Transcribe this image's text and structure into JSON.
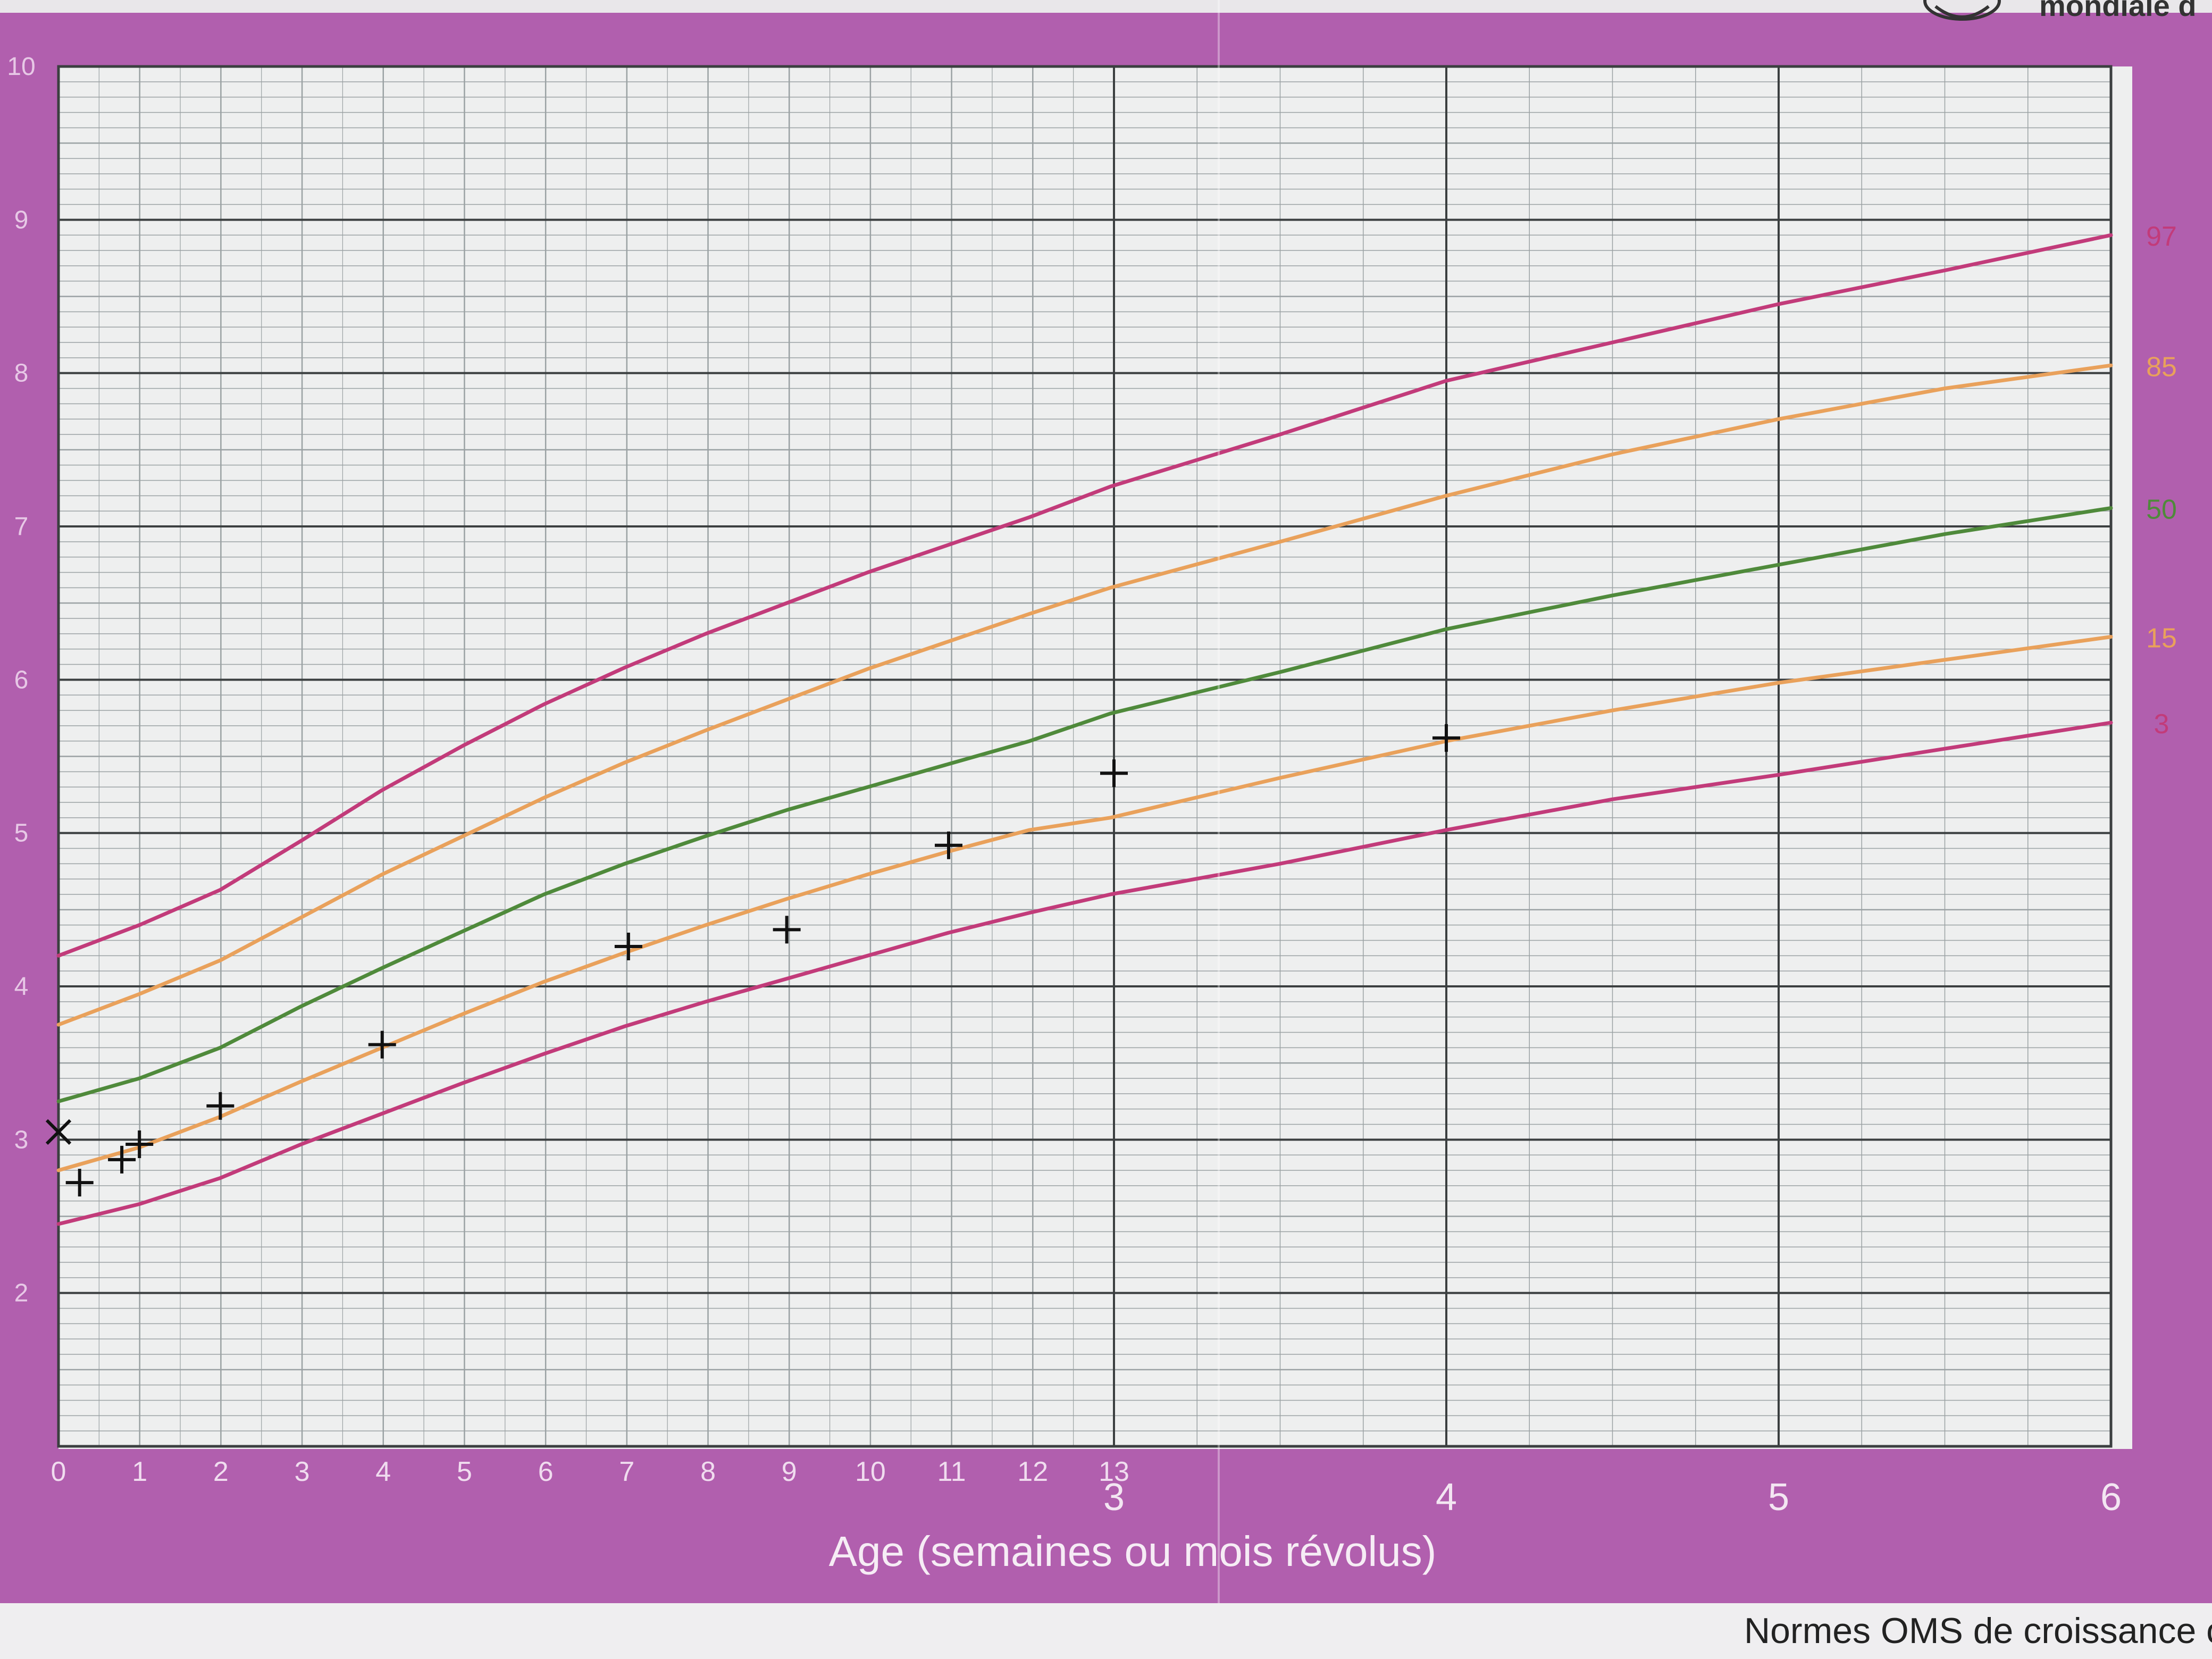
{
  "header": {
    "organization_text": "mondiale d"
  },
  "footer": {
    "text": "Normes OMS de croissance c"
  },
  "colors": {
    "p97": "#c23b7a",
    "p85": "#e9a15b",
    "p50": "#4f8a3b",
    "p15": "#e9a15b",
    "p3": "#c23b7a",
    "frame": "#b15fae",
    "grid": "#9aa1a3",
    "grid_major": "#3b3f40"
  },
  "chart_data": {
    "type": "line",
    "xlabel": "Age (semaines ou mois révolus)",
    "ylabel": "",
    "ylim": [
      1,
      10
    ],
    "y_ticks": [
      2,
      3,
      4,
      5,
      6,
      7,
      8,
      9,
      10
    ],
    "x_week_ticks": [
      0,
      1,
      2,
      3,
      4,
      5,
      6,
      7,
      8,
      9,
      10,
      11,
      12,
      13
    ],
    "x_month_ticks": [
      3,
      4,
      5,
      6
    ],
    "x_domain_months": [
      0,
      6
    ],
    "series": [
      {
        "name": "97",
        "x_months": [
          0,
          0.23,
          0.46,
          0.69,
          0.92,
          1.15,
          1.38,
          1.61,
          1.84,
          2.07,
          2.3,
          2.53,
          2.76,
          2.99,
          3.5,
          4,
          4.5,
          5,
          5.5,
          6
        ],
        "values": [
          4.2,
          4.4,
          4.63,
          4.95,
          5.28,
          5.57,
          5.84,
          6.08,
          6.3,
          6.5,
          6.7,
          6.88,
          7.06,
          7.26,
          7.6,
          7.95,
          8.2,
          8.45,
          8.67,
          8.9
        ]
      },
      {
        "name": "85",
        "x_months": [
          0,
          0.23,
          0.46,
          0.69,
          0.92,
          1.15,
          1.38,
          1.61,
          1.84,
          2.07,
          2.3,
          2.53,
          2.76,
          2.99,
          3.5,
          4,
          4.5,
          5,
          5.5,
          6
        ],
        "values": [
          3.75,
          3.95,
          4.17,
          4.45,
          4.73,
          4.98,
          5.23,
          5.46,
          5.67,
          5.87,
          6.07,
          6.25,
          6.43,
          6.6,
          6.9,
          7.2,
          7.47,
          7.7,
          7.9,
          8.05
        ]
      },
      {
        "name": "50",
        "x_months": [
          0,
          0.23,
          0.46,
          0.69,
          0.92,
          1.15,
          1.38,
          1.61,
          1.84,
          2.07,
          2.3,
          2.53,
          2.76,
          2.99,
          3.5,
          4,
          4.5,
          5,
          5.5,
          6
        ],
        "values": [
          3.25,
          3.4,
          3.6,
          3.87,
          4.12,
          4.36,
          4.6,
          4.8,
          4.98,
          5.15,
          5.3,
          5.45,
          5.6,
          5.78,
          6.05,
          6.33,
          6.55,
          6.75,
          6.95,
          7.12
        ]
      },
      {
        "name": "15",
        "x_months": [
          0,
          0.23,
          0.46,
          0.69,
          0.92,
          1.15,
          1.38,
          1.61,
          1.84,
          2.07,
          2.3,
          2.53,
          2.76,
          2.99,
          3.5,
          4,
          4.5,
          5,
          5.5,
          6
        ],
        "values": [
          2.8,
          2.95,
          3.15,
          3.38,
          3.6,
          3.82,
          4.03,
          4.22,
          4.4,
          4.57,
          4.73,
          4.88,
          5.02,
          5.1,
          5.36,
          5.6,
          5.8,
          5.98,
          6.13,
          6.28
        ]
      },
      {
        "name": "3",
        "x_months": [
          0,
          0.23,
          0.46,
          0.69,
          0.92,
          1.15,
          1.38,
          1.61,
          1.84,
          2.07,
          2.3,
          2.53,
          2.76,
          2.99,
          3.5,
          4,
          4.5,
          5,
          5.5,
          6
        ],
        "values": [
          2.45,
          2.58,
          2.75,
          2.97,
          3.17,
          3.37,
          3.56,
          3.74,
          3.9,
          4.05,
          4.2,
          4.35,
          4.48,
          4.6,
          4.8,
          5.02,
          5.22,
          5.38,
          5.55,
          5.72
        ]
      }
    ],
    "measurements": {
      "x_months": [
        0,
        0.06,
        0.18,
        0.23,
        0.46,
        0.92,
        1.62,
        2.07,
        2.53,
        3.0,
        4.0
      ],
      "values": [
        3.05,
        2.72,
        2.87,
        2.97,
        3.22,
        3.62,
        4.26,
        4.37,
        4.92,
        5.39,
        5.62
      ]
    }
  }
}
